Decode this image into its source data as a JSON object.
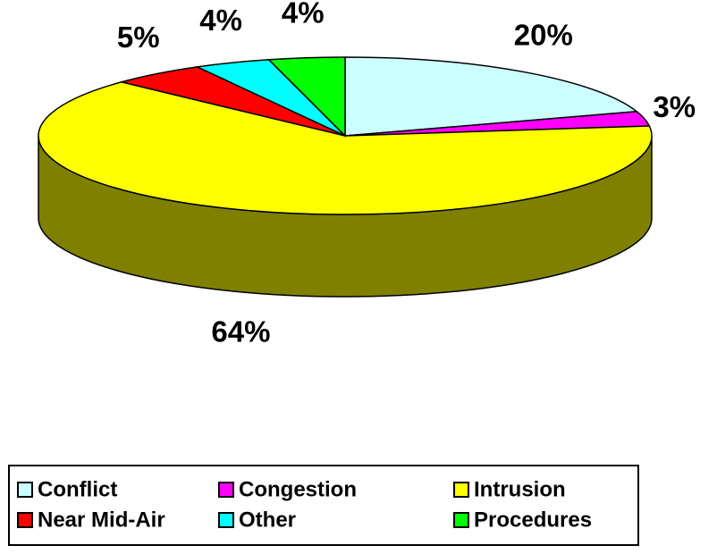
{
  "chart_data": {
    "type": "pie",
    "categories": [
      "Conflict",
      "Congestion",
      "Intrusion",
      "Near Mid-Air",
      "Other",
      "Procedures"
    ],
    "values": [
      20,
      3,
      64,
      5,
      4,
      4
    ],
    "value_labels": [
      "20%",
      "3%",
      "64%",
      "5%",
      "4%",
      "4%"
    ],
    "colors": [
      "#ccffff",
      "#ff00ff",
      "#ffff00",
      "#ff0000",
      "#00ffff",
      "#00ff00"
    ],
    "legend": "bottom"
  }
}
